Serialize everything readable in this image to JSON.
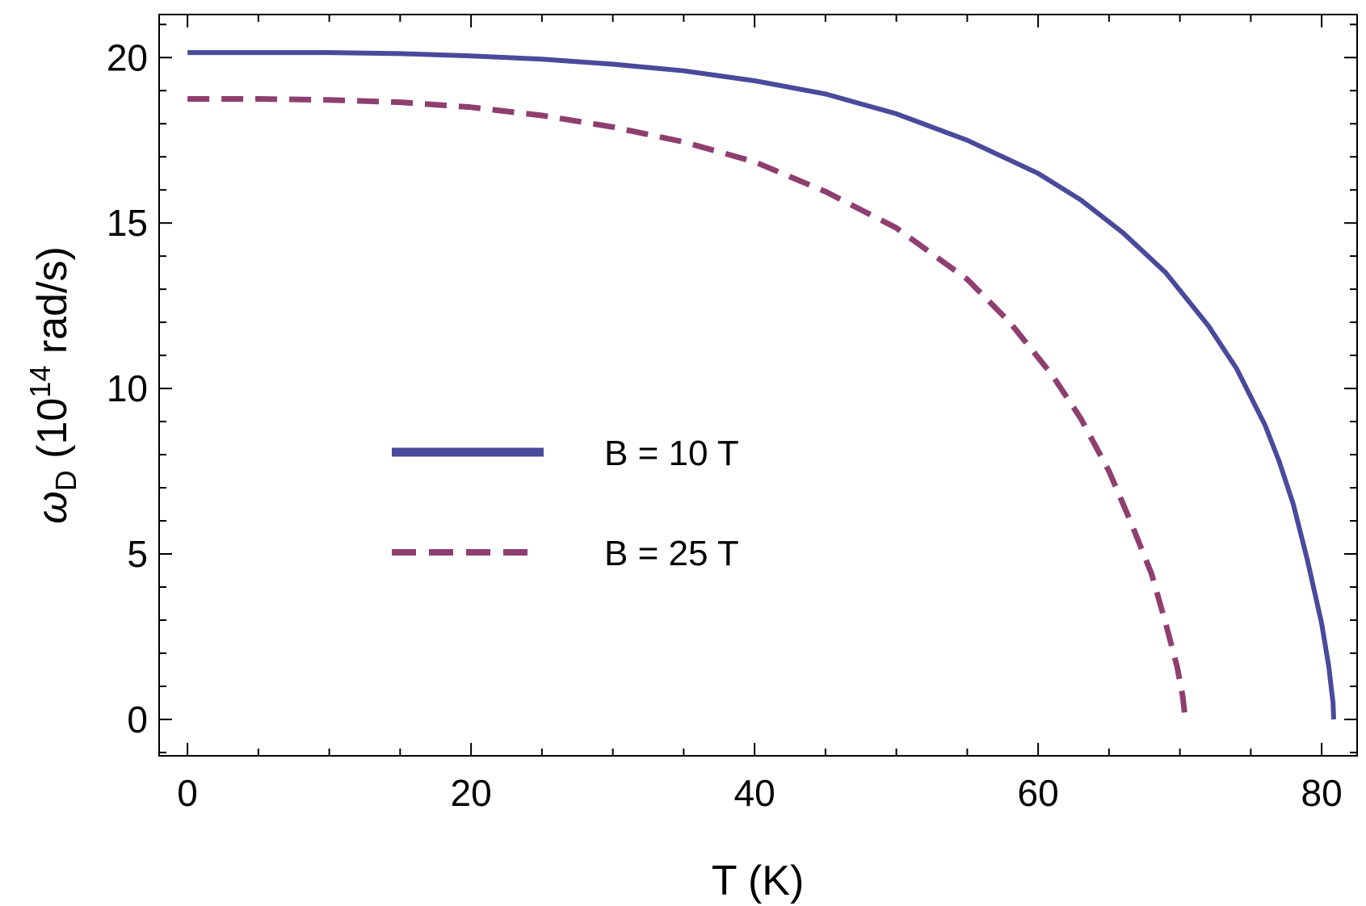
{
  "chart_data": {
    "type": "line",
    "xlabel": "T (K)",
    "ylabel": {
      "symbol": "ω",
      "subscript": "D",
      "open": " (10",
      "superscript": "14",
      "close": " rad/s)"
    },
    "xlim": [
      -2,
      82.5
    ],
    "ylim": [
      -1.1,
      21.3
    ],
    "xticks": [
      0,
      20,
      40,
      60,
      80
    ],
    "xtick_labels": [
      "0",
      "20",
      "40",
      "60",
      "80"
    ],
    "yticks": [
      0,
      5,
      10,
      15,
      20
    ],
    "ytick_labels": [
      "0",
      "5",
      "10",
      "15",
      "20"
    ],
    "x_minor_step": 5,
    "y_minor_step": 1,
    "grid": false,
    "legend_position": "center-left",
    "series": [
      {
        "name": "B = 10 T",
        "style": "solid",
        "color": "#4a4a9c",
        "x": [
          0,
          5,
          10,
          15,
          20,
          25,
          30,
          35,
          40,
          45,
          50,
          55,
          60,
          63,
          66,
          69,
          72,
          74,
          76,
          77,
          78,
          79,
          80,
          80.5,
          80.8,
          80.85
        ],
        "y": [
          20.15,
          20.15,
          20.15,
          20.12,
          20.05,
          19.95,
          19.8,
          19.6,
          19.3,
          18.9,
          18.3,
          17.5,
          16.5,
          15.7,
          14.7,
          13.5,
          11.9,
          10.6,
          8.9,
          7.8,
          6.5,
          4.8,
          2.9,
          1.6,
          0.5,
          0.0
        ]
      },
      {
        "name": "B = 25 T",
        "style": "dashed",
        "color": "#8f3f6f",
        "x": [
          0,
          5,
          10,
          15,
          20,
          25,
          30,
          35,
          40,
          45,
          50,
          55,
          58,
          61,
          63,
          65,
          66.5,
          68,
          69,
          69.8,
          70.2,
          70.35
        ],
        "y": [
          18.75,
          18.75,
          18.72,
          18.65,
          18.5,
          18.25,
          17.9,
          17.45,
          16.85,
          15.95,
          14.85,
          13.3,
          12.0,
          10.4,
          9.1,
          7.5,
          6.0,
          4.4,
          2.9,
          1.6,
          0.7,
          0.1
        ]
      }
    ]
  }
}
